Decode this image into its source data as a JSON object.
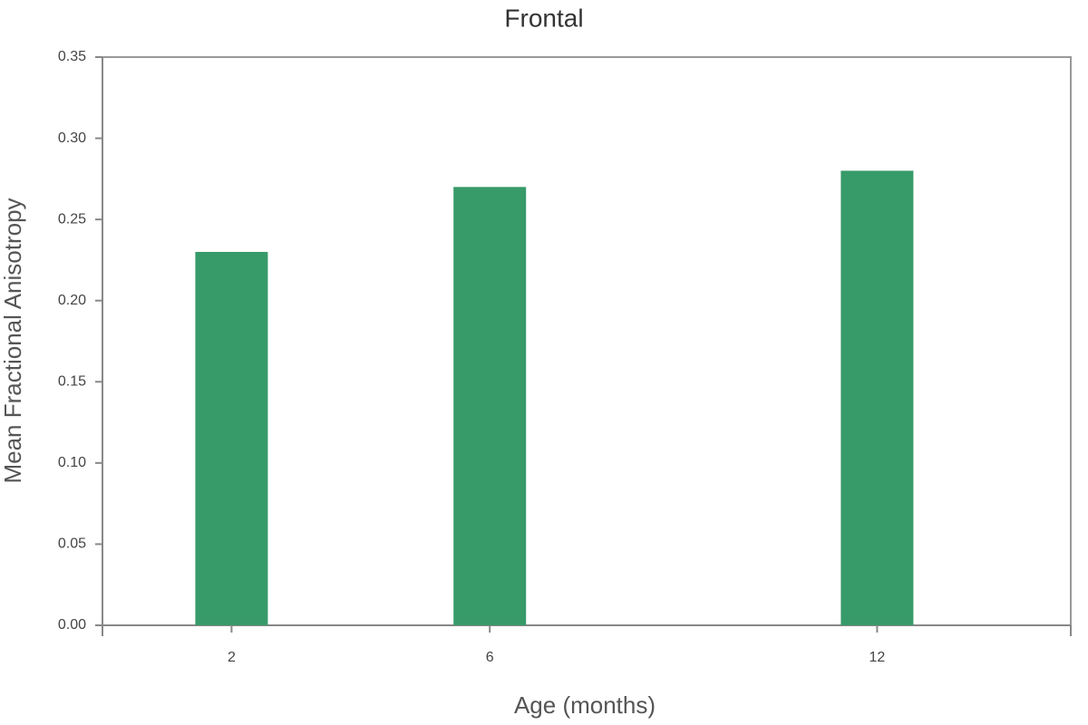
{
  "chart_data": {
    "type": "bar",
    "title": "Frontal",
    "x_label": "Age (months)",
    "y_label": "Mean Fractional Anisotropy",
    "x": [
      2,
      6,
      12
    ],
    "values": [
      0.23,
      0.27,
      0.28
    ],
    "color": "#379a69",
    "xlim": [
      0,
      15
    ],
    "xticks": [
      2,
      6,
      12
    ],
    "ylim": [
      0,
      0.35
    ],
    "yticks": [
      {
        "value": 0,
        "label": "0.00"
      },
      0.05,
      {
        "value": 0.1,
        "label": "0.10"
      },
      0.15,
      {
        "value": 0.2,
        "label": "0.20"
      },
      0.25,
      {
        "value": 0.3,
        "label": "0.30"
      },
      0.35
    ]
  }
}
